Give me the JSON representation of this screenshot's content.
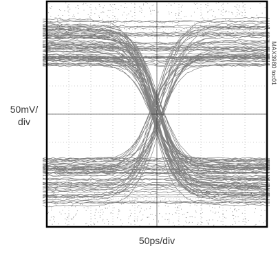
{
  "chart_data": {
    "type": "eye-diagram",
    "ylabel_line1": "50mV/",
    "ylabel_line2": "div",
    "xlabel": "50ps/div",
    "figure_id": "MAX3980 toc01",
    "grid": true
  },
  "colors": {
    "trace": "#1a1a1a",
    "frame": "#000000",
    "grid": "#9a9a9a",
    "background": "#ffffff"
  }
}
